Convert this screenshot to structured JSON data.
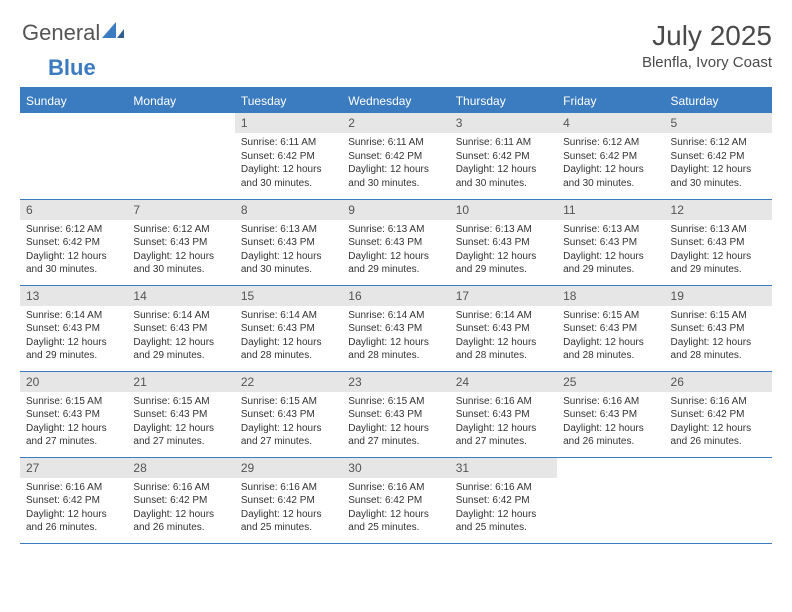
{
  "brand": {
    "word1": "General",
    "word2": "Blue"
  },
  "title": "July 2025",
  "location": "Blenfla, Ivory Coast",
  "colors": {
    "header_bg": "#3b7bbf",
    "header_text": "#ffffff",
    "daynum_bg": "#e6e6e6",
    "text": "#333333",
    "grid_border": "#3b7bbf",
    "page_bg": "#ffffff"
  },
  "typography": {
    "title_fontsize": 28,
    "location_fontsize": 15,
    "weekday_fontsize": 12,
    "daynum_fontsize": 12,
    "body_fontsize": 10
  },
  "weekdays": [
    "Sunday",
    "Monday",
    "Tuesday",
    "Wednesday",
    "Thursday",
    "Friday",
    "Saturday"
  ],
  "weeks": [
    [
      {
        "n": "",
        "sunrise": "",
        "sunset": "",
        "daylight": ""
      },
      {
        "n": "",
        "sunrise": "",
        "sunset": "",
        "daylight": ""
      },
      {
        "n": "1",
        "sunrise": "Sunrise: 6:11 AM",
        "sunset": "Sunset: 6:42 PM",
        "daylight": "Daylight: 12 hours and 30 minutes."
      },
      {
        "n": "2",
        "sunrise": "Sunrise: 6:11 AM",
        "sunset": "Sunset: 6:42 PM",
        "daylight": "Daylight: 12 hours and 30 minutes."
      },
      {
        "n": "3",
        "sunrise": "Sunrise: 6:11 AM",
        "sunset": "Sunset: 6:42 PM",
        "daylight": "Daylight: 12 hours and 30 minutes."
      },
      {
        "n": "4",
        "sunrise": "Sunrise: 6:12 AM",
        "sunset": "Sunset: 6:42 PM",
        "daylight": "Daylight: 12 hours and 30 minutes."
      },
      {
        "n": "5",
        "sunrise": "Sunrise: 6:12 AM",
        "sunset": "Sunset: 6:42 PM",
        "daylight": "Daylight: 12 hours and 30 minutes."
      }
    ],
    [
      {
        "n": "6",
        "sunrise": "Sunrise: 6:12 AM",
        "sunset": "Sunset: 6:42 PM",
        "daylight": "Daylight: 12 hours and 30 minutes."
      },
      {
        "n": "7",
        "sunrise": "Sunrise: 6:12 AM",
        "sunset": "Sunset: 6:43 PM",
        "daylight": "Daylight: 12 hours and 30 minutes."
      },
      {
        "n": "8",
        "sunrise": "Sunrise: 6:13 AM",
        "sunset": "Sunset: 6:43 PM",
        "daylight": "Daylight: 12 hours and 30 minutes."
      },
      {
        "n": "9",
        "sunrise": "Sunrise: 6:13 AM",
        "sunset": "Sunset: 6:43 PM",
        "daylight": "Daylight: 12 hours and 29 minutes."
      },
      {
        "n": "10",
        "sunrise": "Sunrise: 6:13 AM",
        "sunset": "Sunset: 6:43 PM",
        "daylight": "Daylight: 12 hours and 29 minutes."
      },
      {
        "n": "11",
        "sunrise": "Sunrise: 6:13 AM",
        "sunset": "Sunset: 6:43 PM",
        "daylight": "Daylight: 12 hours and 29 minutes."
      },
      {
        "n": "12",
        "sunrise": "Sunrise: 6:13 AM",
        "sunset": "Sunset: 6:43 PM",
        "daylight": "Daylight: 12 hours and 29 minutes."
      }
    ],
    [
      {
        "n": "13",
        "sunrise": "Sunrise: 6:14 AM",
        "sunset": "Sunset: 6:43 PM",
        "daylight": "Daylight: 12 hours and 29 minutes."
      },
      {
        "n": "14",
        "sunrise": "Sunrise: 6:14 AM",
        "sunset": "Sunset: 6:43 PM",
        "daylight": "Daylight: 12 hours and 29 minutes."
      },
      {
        "n": "15",
        "sunrise": "Sunrise: 6:14 AM",
        "sunset": "Sunset: 6:43 PM",
        "daylight": "Daylight: 12 hours and 28 minutes."
      },
      {
        "n": "16",
        "sunrise": "Sunrise: 6:14 AM",
        "sunset": "Sunset: 6:43 PM",
        "daylight": "Daylight: 12 hours and 28 minutes."
      },
      {
        "n": "17",
        "sunrise": "Sunrise: 6:14 AM",
        "sunset": "Sunset: 6:43 PM",
        "daylight": "Daylight: 12 hours and 28 minutes."
      },
      {
        "n": "18",
        "sunrise": "Sunrise: 6:15 AM",
        "sunset": "Sunset: 6:43 PM",
        "daylight": "Daylight: 12 hours and 28 minutes."
      },
      {
        "n": "19",
        "sunrise": "Sunrise: 6:15 AM",
        "sunset": "Sunset: 6:43 PM",
        "daylight": "Daylight: 12 hours and 28 minutes."
      }
    ],
    [
      {
        "n": "20",
        "sunrise": "Sunrise: 6:15 AM",
        "sunset": "Sunset: 6:43 PM",
        "daylight": "Daylight: 12 hours and 27 minutes."
      },
      {
        "n": "21",
        "sunrise": "Sunrise: 6:15 AM",
        "sunset": "Sunset: 6:43 PM",
        "daylight": "Daylight: 12 hours and 27 minutes."
      },
      {
        "n": "22",
        "sunrise": "Sunrise: 6:15 AM",
        "sunset": "Sunset: 6:43 PM",
        "daylight": "Daylight: 12 hours and 27 minutes."
      },
      {
        "n": "23",
        "sunrise": "Sunrise: 6:15 AM",
        "sunset": "Sunset: 6:43 PM",
        "daylight": "Daylight: 12 hours and 27 minutes."
      },
      {
        "n": "24",
        "sunrise": "Sunrise: 6:16 AM",
        "sunset": "Sunset: 6:43 PM",
        "daylight": "Daylight: 12 hours and 27 minutes."
      },
      {
        "n": "25",
        "sunrise": "Sunrise: 6:16 AM",
        "sunset": "Sunset: 6:43 PM",
        "daylight": "Daylight: 12 hours and 26 minutes."
      },
      {
        "n": "26",
        "sunrise": "Sunrise: 6:16 AM",
        "sunset": "Sunset: 6:42 PM",
        "daylight": "Daylight: 12 hours and 26 minutes."
      }
    ],
    [
      {
        "n": "27",
        "sunrise": "Sunrise: 6:16 AM",
        "sunset": "Sunset: 6:42 PM",
        "daylight": "Daylight: 12 hours and 26 minutes."
      },
      {
        "n": "28",
        "sunrise": "Sunrise: 6:16 AM",
        "sunset": "Sunset: 6:42 PM",
        "daylight": "Daylight: 12 hours and 26 minutes."
      },
      {
        "n": "29",
        "sunrise": "Sunrise: 6:16 AM",
        "sunset": "Sunset: 6:42 PM",
        "daylight": "Daylight: 12 hours and 25 minutes."
      },
      {
        "n": "30",
        "sunrise": "Sunrise: 6:16 AM",
        "sunset": "Sunset: 6:42 PM",
        "daylight": "Daylight: 12 hours and 25 minutes."
      },
      {
        "n": "31",
        "sunrise": "Sunrise: 6:16 AM",
        "sunset": "Sunset: 6:42 PM",
        "daylight": "Daylight: 12 hours and 25 minutes."
      },
      {
        "n": "",
        "sunrise": "",
        "sunset": "",
        "daylight": ""
      },
      {
        "n": "",
        "sunrise": "",
        "sunset": "",
        "daylight": ""
      }
    ]
  ]
}
